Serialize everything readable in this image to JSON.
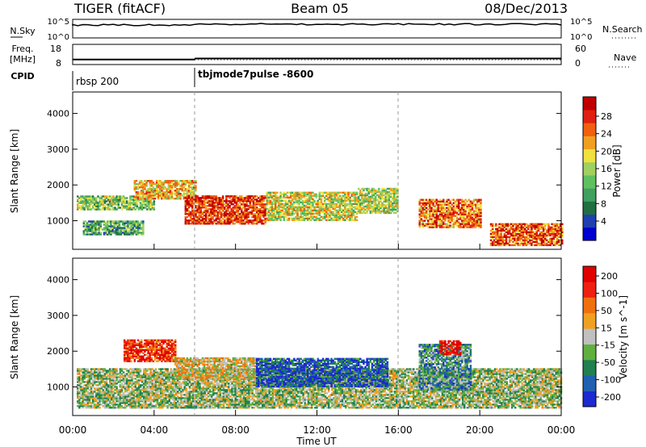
{
  "header": {
    "radar": "TIGER (fitACF)",
    "beam": "Beam 05",
    "date": "08/Dec/2013"
  },
  "top_panels": {
    "nsky_label": "N.Sky",
    "nsky_ticks": [
      "10^5",
      "10^0"
    ],
    "nsearch_label": "N.Search",
    "nsearch_ticks": [
      "10^5",
      "10^0"
    ],
    "freq_label_1": "Freq.",
    "freq_label_2": "[MHz]",
    "freq_ticks": [
      "18",
      "8"
    ],
    "nave_label": "Nave",
    "nave_ticks": [
      "60",
      "0"
    ],
    "cpid_label": "CPID",
    "cpid_modes": [
      "rbsp 200",
      "tbjmode7pulse -8600"
    ],
    "freq_levels_mhz": {
      "before_06": 10.5,
      "after_06": 11.0
    },
    "nave_level": {
      "after_06": 14
    }
  },
  "chart_data": [
    {
      "type": "heatmap",
      "panel": "power",
      "xlabel": "",
      "ylabel": "Slant Range [km]",
      "xlim_hours": [
        0,
        24
      ],
      "ylim": [
        200,
        4600
      ],
      "yticks": [
        1000,
        2000,
        3000,
        4000
      ],
      "colorbar": {
        "label": "Power [dB]",
        "ticks": [
          "28",
          "24",
          "20",
          "16",
          "12",
          "8",
          "4"
        ],
        "colors": [
          "#0000d0",
          "#2040b0",
          "#207040",
          "#40a060",
          "#60c060",
          "#a0d060",
          "#f0e040",
          "#f0a020",
          "#f06010",
          "#e02010",
          "#c00000"
        ]
      },
      "bands": [
        {
          "h0": 0.2,
          "h1": 4.0,
          "r0": 1300,
          "r1": 1700,
          "level": 0.45
        },
        {
          "h0": 0.5,
          "h1": 3.5,
          "r0": 600,
          "r1": 1000,
          "level": 0.35
        },
        {
          "h0": 3.0,
          "h1": 6.0,
          "r0": 1600,
          "r1": 2100,
          "level": 0.65
        },
        {
          "h0": 5.5,
          "h1": 9.5,
          "r0": 900,
          "r1": 1700,
          "level": 0.85
        },
        {
          "h0": 9.5,
          "h1": 14.0,
          "r0": 1000,
          "r1": 1800,
          "level": 0.55
        },
        {
          "h0": 14.0,
          "h1": 16.0,
          "r0": 1200,
          "r1": 1900,
          "level": 0.5
        },
        {
          "h0": 17.0,
          "h1": 20.0,
          "r0": 800,
          "r1": 1600,
          "level": 0.75
        },
        {
          "h0": 20.5,
          "h1": 24.0,
          "r0": 300,
          "r1": 900,
          "level": 0.8
        }
      ]
    },
    {
      "type": "heatmap",
      "panel": "velocity",
      "xlabel": "Time UT",
      "ylabel": "Slant Range [km]",
      "xlim_hours": [
        0,
        24
      ],
      "ylim": [
        200,
        4600
      ],
      "yticks": [
        1000,
        2000,
        3000,
        4000
      ],
      "xtick_labels": [
        "00:00",
        "04:00",
        "08:00",
        "12:00",
        "16:00",
        "20:00",
        "00:00"
      ],
      "colorbar": {
        "label": "Velocity [m s^-1]",
        "ticks": [
          "200",
          "100",
          "50",
          "15",
          "-15",
          "-50",
          "-100",
          "-200"
        ],
        "colors": [
          "#1c2ad0",
          "#2060b0",
          "#208050",
          "#60b040",
          "#c0c0c0",
          "#f0a020",
          "#f07010",
          "#f02010",
          "#e00000"
        ]
      },
      "bands": [
        {
          "h0": 0.2,
          "h1": 24.0,
          "r0": 400,
          "r1": 1500,
          "level": 0.45
        },
        {
          "h0": 2.5,
          "h1": 5.0,
          "r0": 1700,
          "r1": 2300,
          "level": 0.85
        },
        {
          "h0": 5.0,
          "h1": 9.0,
          "r0": 1200,
          "r1": 1800,
          "level": 0.55
        },
        {
          "h0": 9.0,
          "h1": 15.5,
          "r0": 1000,
          "r1": 1800,
          "level": 0.15
        },
        {
          "h0": 17.0,
          "h1": 19.5,
          "r0": 900,
          "r1": 2200,
          "level": 0.3
        },
        {
          "h0": 18.0,
          "h1": 19.0,
          "r0": 1900,
          "r1": 2300,
          "level": 0.95
        }
      ]
    }
  ]
}
